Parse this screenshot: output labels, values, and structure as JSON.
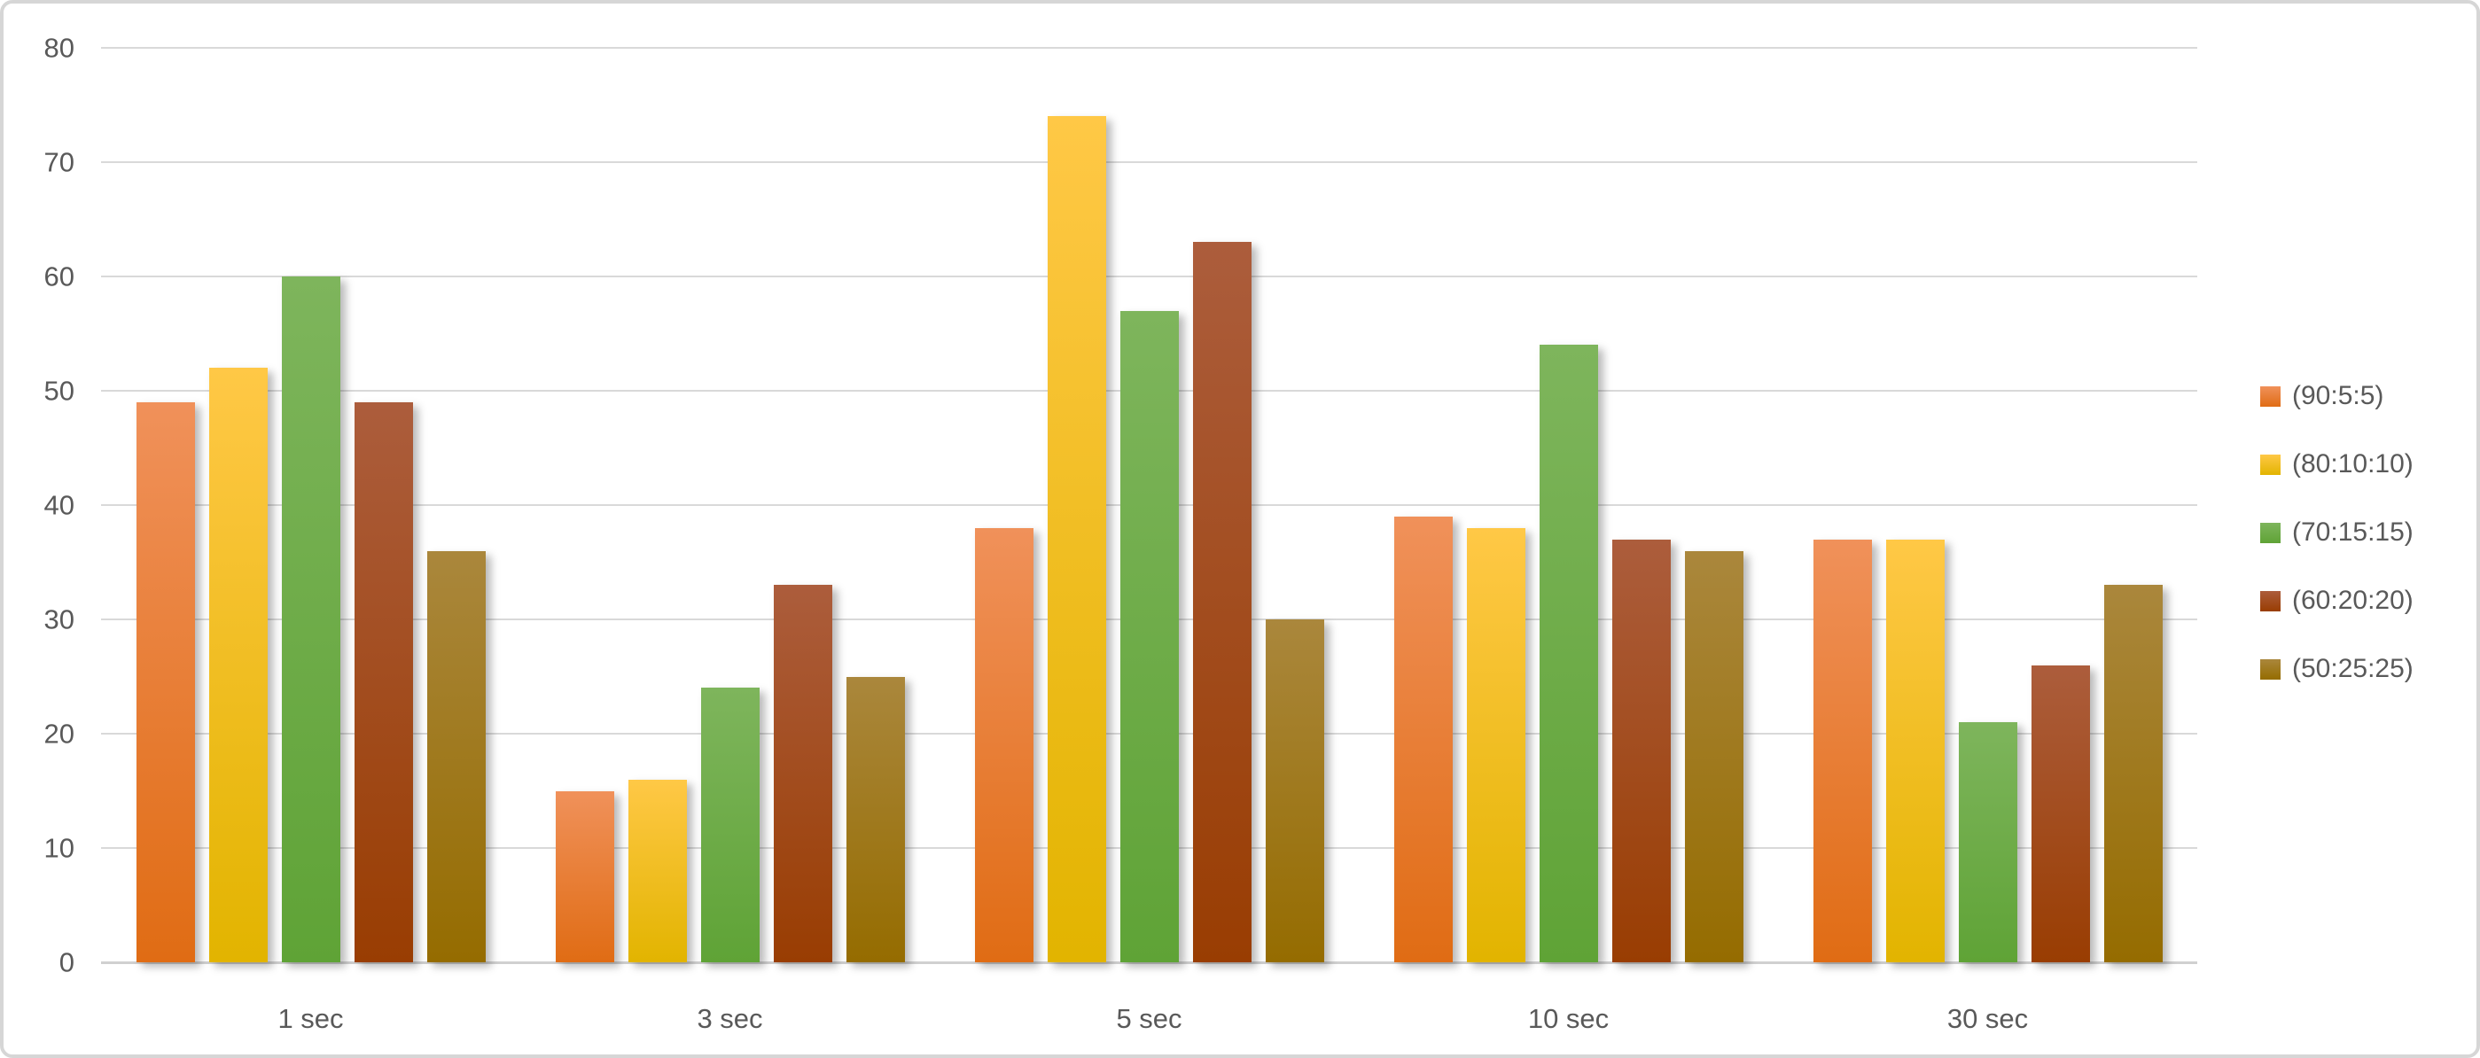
{
  "chart_data": {
    "type": "bar",
    "title": "",
    "xlabel": "",
    "ylabel": "",
    "categories": [
      "1 sec",
      "3 sec",
      "5 sec",
      "10 sec",
      "30 sec"
    ],
    "series": [
      {
        "name": "(90:5:5)",
        "color_top": "#F0915A",
        "color_bottom": "#E06C14",
        "values": [
          49,
          15,
          38,
          39,
          37
        ]
      },
      {
        "name": "(80:10:10)",
        "color_top": "#FFC846",
        "color_bottom": "#E2B400",
        "values": [
          52,
          16,
          74,
          38,
          37
        ]
      },
      {
        "name": "(70:15:15)",
        "color_top": "#7EB55C",
        "color_bottom": "#5FA336",
        "values": [
          60,
          24,
          57,
          54,
          21
        ]
      },
      {
        "name": "(60:20:20)",
        "color_top": "#AC5D3C",
        "color_bottom": "#993D02",
        "values": [
          49,
          33,
          63,
          37,
          26
        ]
      },
      {
        "name": "(50:25:25)",
        "color_top": "#AA873C",
        "color_bottom": "#956C00",
        "values": [
          36,
          25,
          30,
          36,
          33
        ]
      }
    ],
    "ylim": [
      0,
      80
    ],
    "ytick_interval": 10,
    "ytick_labels": [
      "0",
      "10",
      "20",
      "30",
      "40",
      "50",
      "60",
      "70",
      "80"
    ],
    "grid": true,
    "legend_position": "right"
  },
  "colors": {
    "text": "#595959",
    "gridline": "#D9D9D9",
    "axis_line": "#D0D0D0",
    "background": "#FFFFFF",
    "frame_border": "#D6D6D6"
  }
}
